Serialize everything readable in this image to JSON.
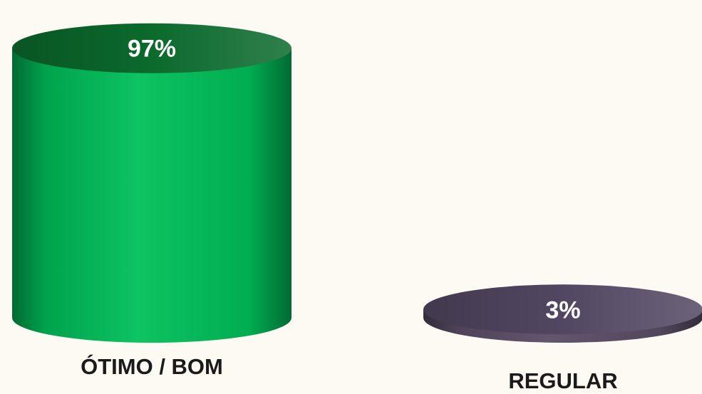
{
  "chart_data": {
    "type": "bar",
    "style": "3d-cylinder",
    "categories": [
      "ÓTIMO / BOM",
      "REGULAR"
    ],
    "values": [
      97,
      3
    ],
    "data_labels": [
      "97%",
      "3%"
    ],
    "unit": "%",
    "ylim": [
      0,
      100
    ],
    "grid": false,
    "legend": "none",
    "title": "",
    "xlabel": "",
    "ylabel": ""
  },
  "colors": {
    "background": "#fdfaf4",
    "bar_series": [
      "#00c05a",
      "#5a4e66"
    ],
    "bar_top": [
      "#0b6a2c",
      "#524762"
    ],
    "label_text": "#1a1a1a",
    "value_text": "#ffffff"
  }
}
